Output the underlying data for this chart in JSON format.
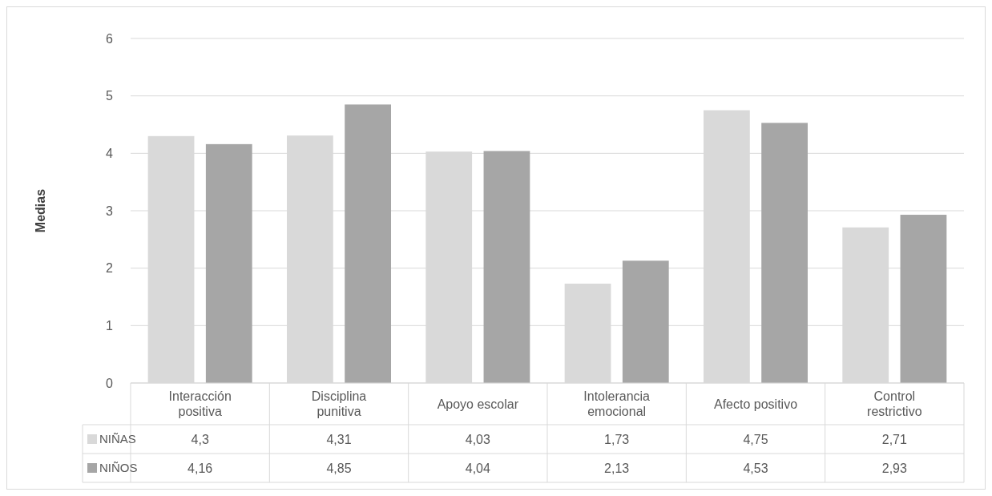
{
  "chart_data": {
    "type": "bar",
    "ylabel": "Medias",
    "categories": [
      "Interacción positiva",
      "Disciplina punitiva",
      "Apoyo escolar",
      "Intolerancia emocional",
      "Afecto positivo",
      "Control restrictivo"
    ],
    "series": [
      {
        "name": "NIÑAS",
        "color": "#d9d9d9",
        "values": [
          4.3,
          4.31,
          4.03,
          1.73,
          4.75,
          2.71
        ],
        "value_labels": [
          "4,3",
          "4,31",
          "4,03",
          "1,73",
          "4,75",
          "2,71"
        ]
      },
      {
        "name": "NIÑOS",
        "color": "#a6a6a6",
        "values": [
          4.16,
          4.85,
          4.04,
          2.13,
          4.53,
          2.93
        ],
        "value_labels": [
          "4,16",
          "4,85",
          "4,04",
          "2,13",
          "4,53",
          "2,93"
        ]
      }
    ],
    "ylim": [
      0,
      6
    ],
    "yticks": [
      0,
      1,
      2,
      3,
      4,
      5,
      6
    ],
    "grid": "y",
    "legend": "bottom"
  }
}
